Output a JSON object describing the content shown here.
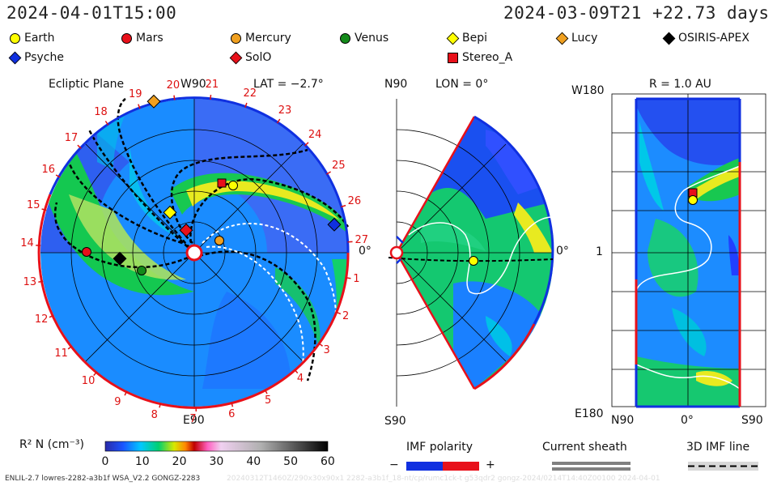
{
  "header": {
    "left_time": "2024-04-01T15:00",
    "right_time": "2024-03-09T21 +22.73 days"
  },
  "legend": [
    {
      "name": "Earth",
      "color": "#ffff00",
      "shape": "circle"
    },
    {
      "name": "Mars",
      "color": "#e8101a",
      "shape": "circle"
    },
    {
      "name": "Mercury",
      "color": "#f0a020",
      "shape": "circle"
    },
    {
      "name": "Venus",
      "color": "#148a1a",
      "shape": "circle"
    },
    {
      "name": "Bepi",
      "color": "#ffff00",
      "shape": "diamond"
    },
    {
      "name": "Lucy",
      "color": "#f0a020",
      "shape": "diamond"
    },
    {
      "name": "OSIRIS-APEX",
      "color": "#000000",
      "shape": "diamond"
    },
    {
      "name": "Psyche",
      "color": "#1030e0",
      "shape": "diamond"
    },
    {
      "name": "SolO",
      "color": "#e8101a",
      "shape": "diamond"
    },
    {
      "name": "Stereo_A",
      "color": "#e8101a",
      "shape": "square"
    }
  ],
  "panels": {
    "ecliptic": {
      "title": "Ecliptic Plane",
      "lat_label": "LAT = −2.7°",
      "top_label": "W90",
      "bottom_label": "E90",
      "right_label": "0°",
      "carrington_ticks": [
        "1",
        "2",
        "3",
        "4",
        "5",
        "6",
        "7",
        "8",
        "9",
        "10",
        "11",
        "12",
        "13",
        "14",
        "15",
        "16",
        "17",
        "18",
        "19",
        "20",
        "21",
        "22",
        "23",
        "24",
        "25",
        "26",
        "27"
      ]
    },
    "meridional": {
      "lon_label": "LON = 0°",
      "top_label": "N90",
      "bottom_label": "S90",
      "right_label": "0°"
    },
    "shell": {
      "r_label": "R = 1.0 AU",
      "top_left": "W180",
      "bottom_left": "E180",
      "mid_left": "1",
      "x_labels": [
        "N90",
        "0°",
        "S90"
      ]
    }
  },
  "colorbar": {
    "label": "R² N (cm⁻³)",
    "ticks": [
      "0",
      "10",
      "20",
      "30",
      "40",
      "50",
      "60"
    ]
  },
  "keys": {
    "imf_polarity": "IMF polarity",
    "minus": "−",
    "plus": "+",
    "current_sheath": "Current sheath",
    "imf_line": "3D IMF line"
  },
  "footer": {
    "left": "ENLIL-2.7 lowres-2282-a3b1f WSA_V2.2 GONGZ-2283",
    "faint": "20240312T1460Z/290x30x90x1 2282-a3b1f_18-nt/cp/rumc1ck-t g53qdr2 gongz-2024/0214T14:40Z00100      2024-04-01"
  },
  "colors": {
    "blue_sector": "#1030e0",
    "red_sector": "#e8101a"
  }
}
